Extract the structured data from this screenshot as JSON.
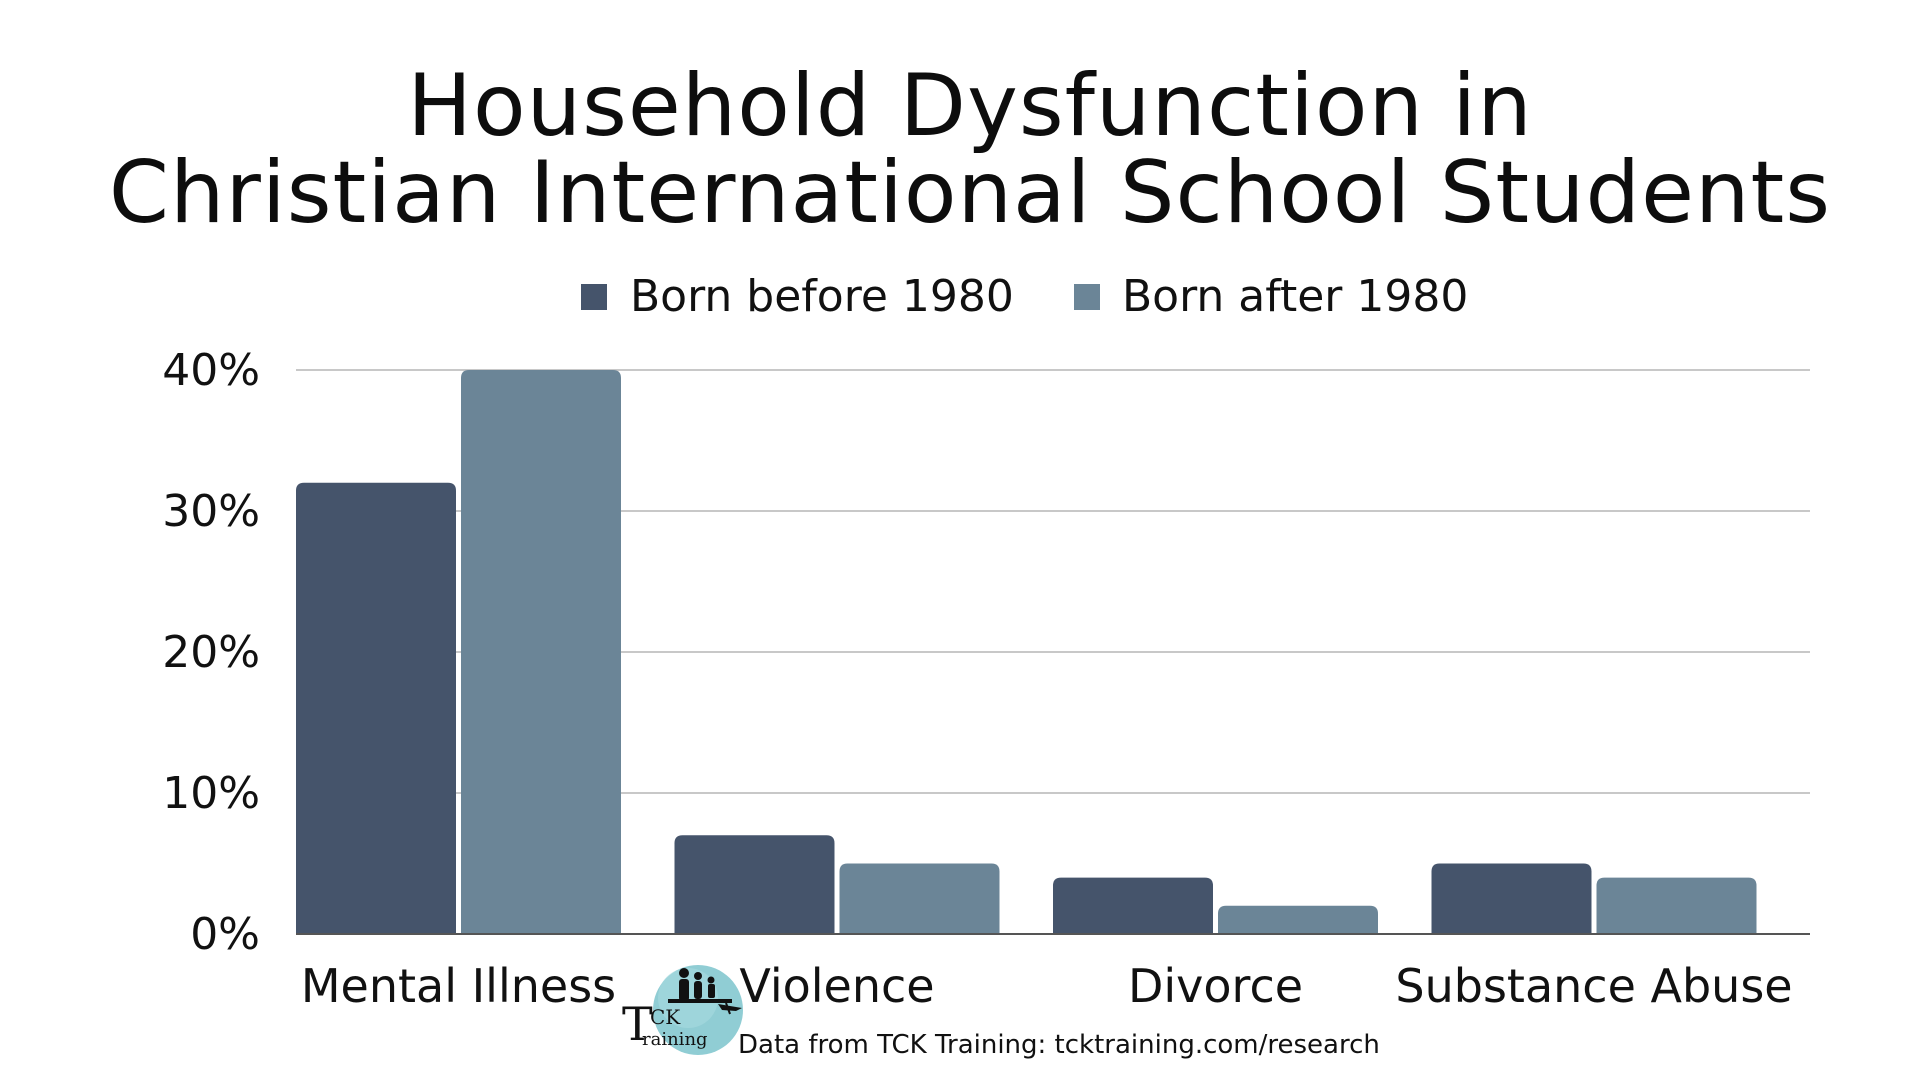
{
  "chart_data": {
    "type": "bar",
    "title_lines": [
      "Household Dysfunction in",
      "Christian International School Students"
    ],
    "categories": [
      "Mental Illness",
      "Violence",
      "Divorce",
      "Substance Abuse"
    ],
    "series": [
      {
        "name": "Born before 1980",
        "values": [
          32,
          7,
          4,
          5
        ],
        "color": "#45546b"
      },
      {
        "name": "Born after 1980",
        "values": [
          40,
          5,
          2,
          4
        ],
        "color": "#6b8597"
      }
    ],
    "y_ticks": [
      0,
      10,
      20,
      30,
      40
    ],
    "tick_suffix": "%",
    "ylim": [
      0,
      40
    ],
    "grid": true,
    "legend_position": "top-center"
  },
  "footer": {
    "source": "Data from TCK Training: tcktraining.com/research",
    "logo_letter": "T",
    "logo_ck": "CK",
    "logo_raining": "raining"
  }
}
